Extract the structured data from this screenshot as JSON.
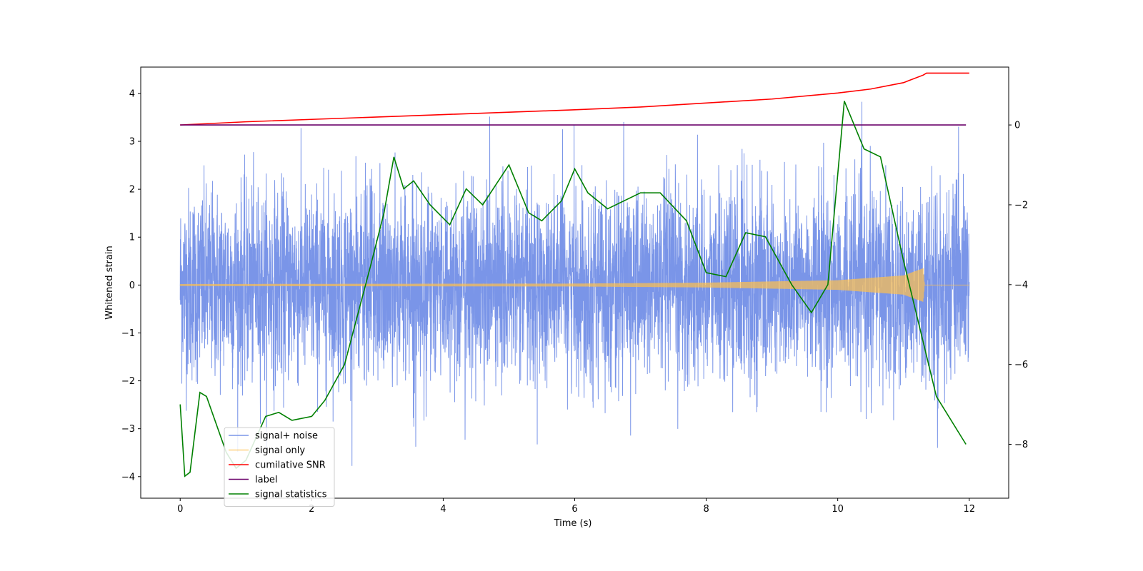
{
  "chart_data": {
    "type": "line",
    "title": "",
    "xlabel": "Time (s)",
    "ylabel": "Whitened strain",
    "ylabel_right": "",
    "xlim": [
      -0.6,
      12.6
    ],
    "ylim_left": [
      -4.45,
      4.55
    ],
    "ylim_right": [
      -9.35,
      1.45
    ],
    "x_ticks": [
      0,
      2,
      4,
      6,
      8,
      10,
      12
    ],
    "x_tick_labels": [
      "0",
      "2",
      "4",
      "6",
      "8",
      "10",
      "12"
    ],
    "y_ticks_left": [
      -4,
      -3,
      -2,
      -1,
      0,
      1,
      2,
      3,
      4
    ],
    "y_tick_labels_left": [
      "−4",
      "−3",
      "−2",
      "−1",
      "0",
      "1",
      "2",
      "3",
      "4"
    ],
    "y_ticks_right": [
      -8,
      -6,
      -4,
      -2,
      0
    ],
    "y_tick_labels_right": [
      "−8",
      "−6",
      "−4",
      "−2",
      "0"
    ],
    "grid": false,
    "legend_position": "lower-left",
    "series": [
      {
        "name": "signal+ noise",
        "axis": "left",
        "color": "#7a95e8",
        "sampling": "noise",
        "x_range": [
          0,
          12
        ],
        "amplitude_approx": 3.9,
        "std_approx": 1.0
      },
      {
        "name": "signal only",
        "axis": "left",
        "color": "#ffc04d",
        "sampling": "chirp",
        "x_range": [
          0,
          12
        ],
        "merger_time": 11.3,
        "envelope": [
          [
            0,
            0.02
          ],
          [
            6,
            0.03
          ],
          [
            8,
            0.05
          ],
          [
            10,
            0.1
          ],
          [
            11,
            0.2
          ],
          [
            11.3,
            0.35
          ],
          [
            11.32,
            0.0
          ],
          [
            12,
            0.0
          ]
        ]
      },
      {
        "name": "cumilative SNR",
        "axis": "right",
        "color": "#ff0000",
        "points": [
          [
            0,
            0.0
          ],
          [
            1,
            0.08
          ],
          [
            2,
            0.14
          ],
          [
            3,
            0.2
          ],
          [
            4,
            0.26
          ],
          [
            5,
            0.32
          ],
          [
            6,
            0.38
          ],
          [
            7,
            0.45
          ],
          [
            8,
            0.55
          ],
          [
            9,
            0.65
          ],
          [
            10,
            0.8
          ],
          [
            10.5,
            0.9
          ],
          [
            11,
            1.06
          ],
          [
            11.3,
            1.25
          ],
          [
            11.35,
            1.3
          ],
          [
            12,
            1.3
          ]
        ]
      },
      {
        "name": "label",
        "axis": "right",
        "color": "#6a006a",
        "points": [
          [
            0,
            0.0
          ],
          [
            11.95,
            0.0
          ]
        ]
      },
      {
        "name": "signal statistics",
        "axis": "right",
        "color": "#008000",
        "points": [
          [
            0,
            -7.0
          ],
          [
            0.07,
            -8.8
          ],
          [
            0.15,
            -8.7
          ],
          [
            0.3,
            -6.7
          ],
          [
            0.4,
            -6.8
          ],
          [
            0.55,
            -7.5
          ],
          [
            0.7,
            -8.2
          ],
          [
            0.85,
            -8.6
          ],
          [
            1.0,
            -8.4
          ],
          [
            1.3,
            -7.3
          ],
          [
            1.5,
            -7.2
          ],
          [
            1.7,
            -7.4
          ],
          [
            2.0,
            -7.3
          ],
          [
            2.2,
            -6.9
          ],
          [
            2.5,
            -6.0
          ],
          [
            2.9,
            -3.5
          ],
          [
            3.1,
            -2.2
          ],
          [
            3.25,
            -0.8
          ],
          [
            3.4,
            -1.6
          ],
          [
            3.55,
            -1.4
          ],
          [
            3.8,
            -2.0
          ],
          [
            4.1,
            -2.5
          ],
          [
            4.35,
            -1.6
          ],
          [
            4.6,
            -2.0
          ],
          [
            5.0,
            -1.0
          ],
          [
            5.3,
            -2.2
          ],
          [
            5.5,
            -2.4
          ],
          [
            5.8,
            -1.9
          ],
          [
            6.0,
            -1.1
          ],
          [
            6.2,
            -1.7
          ],
          [
            6.5,
            -2.1
          ],
          [
            7.0,
            -1.7
          ],
          [
            7.3,
            -1.7
          ],
          [
            7.7,
            -2.4
          ],
          [
            8.0,
            -3.7
          ],
          [
            8.3,
            -3.8
          ],
          [
            8.6,
            -2.7
          ],
          [
            8.9,
            -2.8
          ],
          [
            9.3,
            -4.0
          ],
          [
            9.6,
            -4.7
          ],
          [
            9.85,
            -4.0
          ],
          [
            10.1,
            0.6
          ],
          [
            10.4,
            -0.6
          ],
          [
            10.65,
            -0.8
          ],
          [
            11.0,
            -3.4
          ],
          [
            11.5,
            -6.8
          ],
          [
            11.95,
            -8.0
          ]
        ]
      }
    ]
  }
}
